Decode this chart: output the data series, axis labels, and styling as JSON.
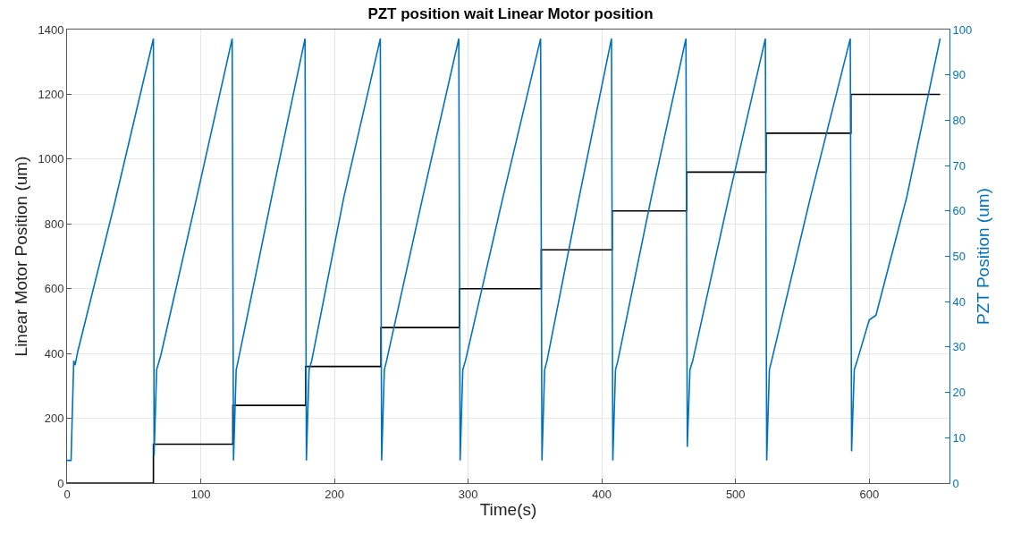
{
  "chart_data": {
    "type": "line",
    "title": "PZT position wait Linear Motor position",
    "xlabel": "Time(s)",
    "ylabel": "Linear Motor Position (um)",
    "y2label": "PZT Position (um)",
    "xlim": [
      0,
      660
    ],
    "xticks": [
      0,
      100,
      200,
      300,
      400,
      500,
      600
    ],
    "ylim": [
      0,
      1400
    ],
    "yticks": [
      0,
      200,
      400,
      600,
      800,
      1000,
      1200,
      1400
    ],
    "y2lim": [
      0,
      100
    ],
    "y2ticks": [
      0,
      10,
      20,
      30,
      40,
      50,
      60,
      70,
      80,
      90,
      100
    ],
    "grid": true,
    "marker": "none",
    "line_style": "solid",
    "series": [
      {
        "color": "#000000",
        "x": [
          0,
          64.6,
          64.6,
          124,
          124,
          178.5,
          178.5,
          234.8,
          234.8,
          293.5,
          293.5,
          354.7,
          354.7,
          407.7,
          407.7,
          463.4,
          463.4,
          522.8,
          522.8,
          586.3,
          586.3,
          653
        ],
        "values": [
          0,
          0,
          120,
          120,
          240,
          240,
          360,
          360,
          480,
          480,
          600,
          600,
          720,
          720,
          840,
          840,
          960,
          960,
          1080,
          1080,
          1200,
          1200
        ]
      },
      {
        "color": "#0072bd",
        "axis": "y2",
        "x": [
          0,
          3,
          5,
          6,
          8,
          35,
          63,
          64.6,
          65.1,
          67,
          68,
          70,
          97,
          123.5,
          124.5,
          126.5,
          128,
          153,
          178,
          179,
          181,
          183,
          207,
          234.3,
          235.3,
          237.3,
          239,
          266,
          293,
          294,
          296,
          298,
          326,
          354.2,
          355.2,
          357.2,
          359,
          383,
          407.2,
          408.2,
          410.2,
          412,
          437,
          462.9,
          463.9,
          465.9,
          468,
          495,
          522.3,
          523.3,
          525.3,
          527,
          556,
          585.8,
          586.8,
          588.8,
          591,
          600,
          605,
          628,
          653
        ],
        "values": [
          5,
          5,
          27,
          26,
          29,
          61,
          96,
          98,
          6,
          25,
          26,
          28,
          63,
          98,
          5,
          25,
          27,
          63,
          98,
          5,
          25,
          27,
          63,
          98,
          5,
          25,
          27,
          63,
          98,
          5,
          25,
          27,
          63,
          98,
          5,
          25,
          27,
          63,
          98,
          5,
          25,
          27,
          63,
          98,
          8,
          25,
          27,
          63,
          98,
          5,
          25,
          27,
          63,
          98,
          7,
          25,
          27,
          36,
          37,
          63,
          98
        ]
      }
    ]
  }
}
